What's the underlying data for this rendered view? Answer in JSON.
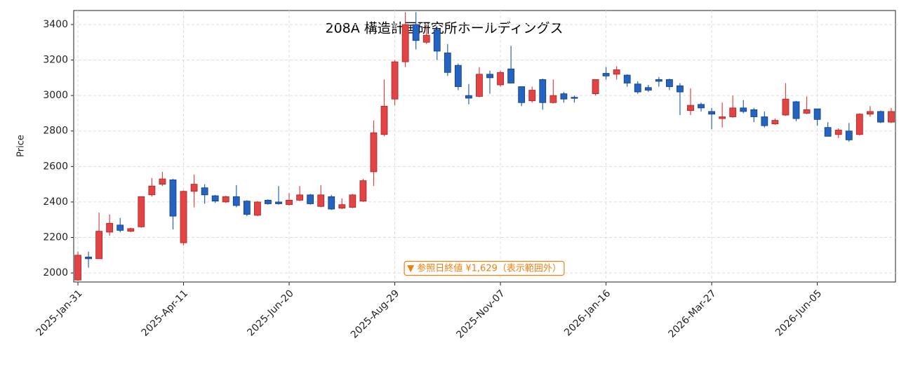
{
  "chart_data": {
    "type": "candlestick",
    "title": "208A  構造計画研究所ホールディングス",
    "ylabel": "Price",
    "annotation": "▼ 参照日終値 ¥1,629（表示範囲外）",
    "up_color": "#e04444",
    "down_color": "#2464c0",
    "annotation_color": "#f07f10",
    "grid": true,
    "ylim": [
      1949,
      3479
    ],
    "yticks": [
      2000,
      2200,
      2400,
      2600,
      2800,
      3000,
      3200,
      3400
    ],
    "categories": [
      "2025-Jan-31",
      null,
      null,
      null,
      null,
      null,
      null,
      null,
      null,
      null,
      "2025-Apr-11",
      null,
      null,
      null,
      null,
      null,
      null,
      null,
      null,
      null,
      "2025-Jun-20",
      null,
      null,
      null,
      null,
      null,
      null,
      null,
      null,
      null,
      "2025-Aug-29",
      null,
      null,
      null,
      null,
      null,
      null,
      null,
      null,
      null,
      "2025-Nov-07",
      null,
      null,
      null,
      null,
      null,
      null,
      null,
      null,
      null,
      "2026-Jan-16",
      null,
      null,
      null,
      null,
      null,
      null,
      null,
      null,
      null,
      "2026-Mar-27",
      null,
      null,
      null,
      null,
      null,
      null,
      null,
      null,
      null,
      "2026-Jun-05",
      null,
      null,
      null,
      null,
      null,
      null,
      null
    ],
    "open": [
      1960,
      2090,
      2080,
      2230,
      2270,
      2235,
      2260,
      2440,
      2500,
      2525,
      2170,
      2460,
      2480,
      2435,
      2400,
      2430,
      2405,
      2325,
      2410,
      2400,
      2385,
      2410,
      2440,
      2375,
      2430,
      2365,
      2370,
      2405,
      2570,
      2780,
      2980,
      3190,
      3400,
      3300,
      3370,
      3240,
      3170,
      3000,
      2995,
      3120,
      3060,
      3150,
      3050,
      2970,
      3090,
      2960,
      3010,
      2990,
      null,
      3010,
      3125,
      3120,
      3115,
      3065,
      3045,
      3090,
      3090,
      3055,
      2915,
      2950,
      2910,
      2870,
      2880,
      2930,
      2920,
      2880,
      2840,
      2890,
      2965,
      2900,
      2925,
      2820,
      2780,
      2800,
      2780,
      2895,
      2910,
      2850
    ],
    "high": [
      2120,
      2120,
      2340,
      2330,
      2310,
      2255,
      2430,
      2535,
      2570,
      2530,
      2465,
      2555,
      2500,
      2440,
      2435,
      2495,
      2410,
      2405,
      2415,
      2490,
      2450,
      2490,
      2445,
      2495,
      2440,
      2420,
      2445,
      2530,
      2860,
      3090,
      3200,
      3470,
      3470,
      3400,
      3390,
      3290,
      3180,
      3065,
      3160,
      3140,
      3140,
      3280,
      3050,
      3050,
      3095,
      3090,
      3020,
      3000,
      null,
      3090,
      3160,
      3165,
      3120,
      3080,
      3060,
      3105,
      3095,
      3070,
      3040,
      2960,
      2930,
      2960,
      3000,
      2975,
      2930,
      2910,
      2870,
      3070,
      2970,
      2995,
      2925,
      2850,
      2815,
      2845,
      2900,
      2940,
      2915,
      2930
    ],
    "low": [
      1955,
      2030,
      2080,
      2210,
      2230,
      2230,
      2255,
      2430,
      2490,
      2245,
      2155,
      2370,
      2390,
      2395,
      2395,
      2370,
      2320,
      2320,
      2385,
      2385,
      2380,
      2405,
      2385,
      2370,
      2355,
      2360,
      2365,
      2400,
      2490,
      2770,
      2945,
      3160,
      3260,
      3290,
      3200,
      3110,
      3030,
      2950,
      2990,
      3010,
      3050,
      3070,
      2940,
      2960,
      2920,
      2955,
      2960,
      2960,
      null,
      3000,
      3090,
      3090,
      3050,
      3010,
      3020,
      3050,
      3030,
      2890,
      2890,
      2910,
      2810,
      2820,
      2875,
      2900,
      2850,
      2820,
      2835,
      2885,
      2855,
      2895,
      2830,
      2770,
      2760,
      2740,
      2775,
      2880,
      2845,
      2845
    ],
    "close": [
      2100,
      2080,
      2235,
      2280,
      2240,
      2250,
      2430,
      2490,
      2530,
      2320,
      2460,
      2500,
      2440,
      2405,
      2430,
      2380,
      2330,
      2400,
      2390,
      2390,
      2410,
      2440,
      2390,
      2440,
      2360,
      2385,
      2440,
      2520,
      2790,
      2940,
      3190,
      3400,
      3310,
      3340,
      3250,
      3130,
      3050,
      2985,
      3120,
      3100,
      3130,
      3070,
      2960,
      3030,
      2960,
      3000,
      2980,
      2985,
      null,
      3090,
      3110,
      3145,
      3070,
      3020,
      3030,
      3080,
      3050,
      3020,
      2945,
      2930,
      2895,
      2880,
      2930,
      2910,
      2880,
      2830,
      2860,
      2980,
      2870,
      2920,
      2865,
      2770,
      2805,
      2750,
      2895,
      2910,
      2850,
      2910
    ]
  }
}
